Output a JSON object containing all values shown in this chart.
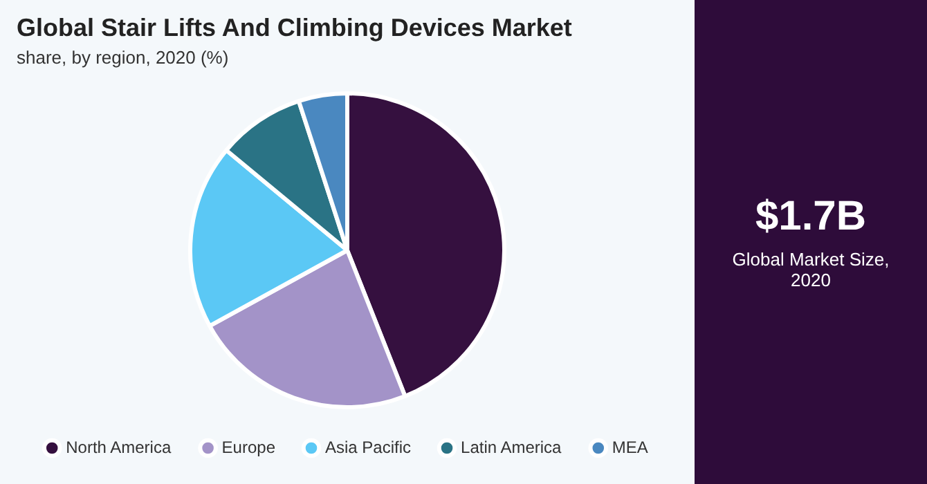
{
  "chart_data": {
    "type": "pie",
    "title": "Global Stair Lifts And Climbing Devices Market",
    "subtitle": "share, by region, 2020 (%)",
    "categories": [
      "North America",
      "Europe",
      "Asia Pacific",
      "Latin America",
      "MEA"
    ],
    "values": [
      44,
      23,
      19,
      9,
      5
    ],
    "colors": [
      "#35103f",
      "#a393c8",
      "#5bc8f5",
      "#2a7385",
      "#4a88c0"
    ],
    "legend": "bottom",
    "annotations": [
      "$1.7B",
      "Global Market Size,\n2020"
    ]
  }
}
